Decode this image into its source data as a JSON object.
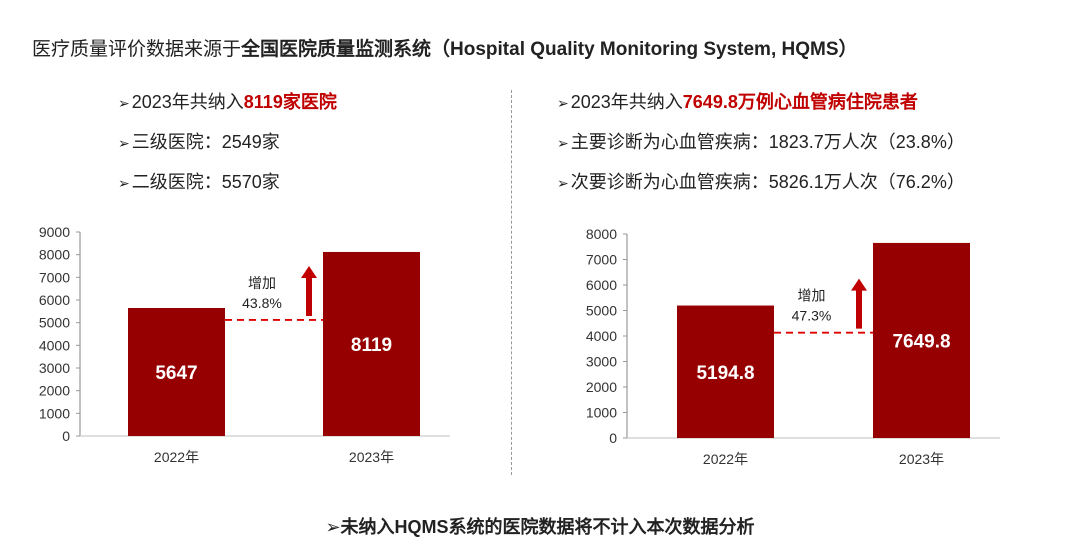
{
  "title": {
    "prefix": "医疗质量评价数据来源于",
    "bold": "全国医院质量监测系统（Hospital Quality Monitoring System, HQMS）"
  },
  "left_bullets": [
    {
      "arrow": "➢",
      "text": "2023年共纳入",
      "highlight": "8119家医院"
    },
    {
      "arrow": "➢",
      "text": "三级医院：2549家"
    },
    {
      "arrow": "➢",
      "text": "二级医院：5570家"
    }
  ],
  "right_bullets": [
    {
      "arrow": "➢",
      "text": "2023年共纳入",
      "highlight": "7649.8万例心血管病住院患者"
    },
    {
      "arrow": "➢",
      "text": "主要诊断为心血管疾病：1823.7万人次（23.8%）"
    },
    {
      "arrow": "➢",
      "text": "次要诊断为心血管疾病：5826.1万人次（76.2%）"
    }
  ],
  "footer": {
    "arrow": "➢",
    "text": "未纳入HQMS系统的医院数据将不计入本次数据分析"
  },
  "colors": {
    "bar": "#960000",
    "dash": "#e00000",
    "arrow": "#c00000"
  },
  "chart_data": [
    {
      "type": "bar",
      "categories": [
        "2022年",
        "2023年"
      ],
      "values": [
        5647,
        8119
      ],
      "data_labels": [
        "5647",
        "8119"
      ],
      "ylim": [
        0,
        9000
      ],
      "yticks": [
        "0",
        "1000",
        "2000",
        "3000",
        "4000",
        "5000",
        "6000",
        "7000",
        "8000",
        "9000"
      ],
      "annotation": {
        "line1": "增加",
        "line2": "43.8%"
      },
      "dashed_reference": 5120
    },
    {
      "type": "bar",
      "categories": [
        "2022年",
        "2023年"
      ],
      "values": [
        5194.8,
        7649.8
      ],
      "data_labels": [
        "5194.8",
        "7649.8"
      ],
      "ylim": [
        0,
        8000
      ],
      "yticks": [
        "0",
        "1000",
        "2000",
        "3000",
        "4000",
        "5000",
        "6000",
        "7000",
        "8000"
      ],
      "annotation": {
        "line1": "增加",
        "line2": "47.3%"
      },
      "dashed_reference": 4130
    }
  ]
}
